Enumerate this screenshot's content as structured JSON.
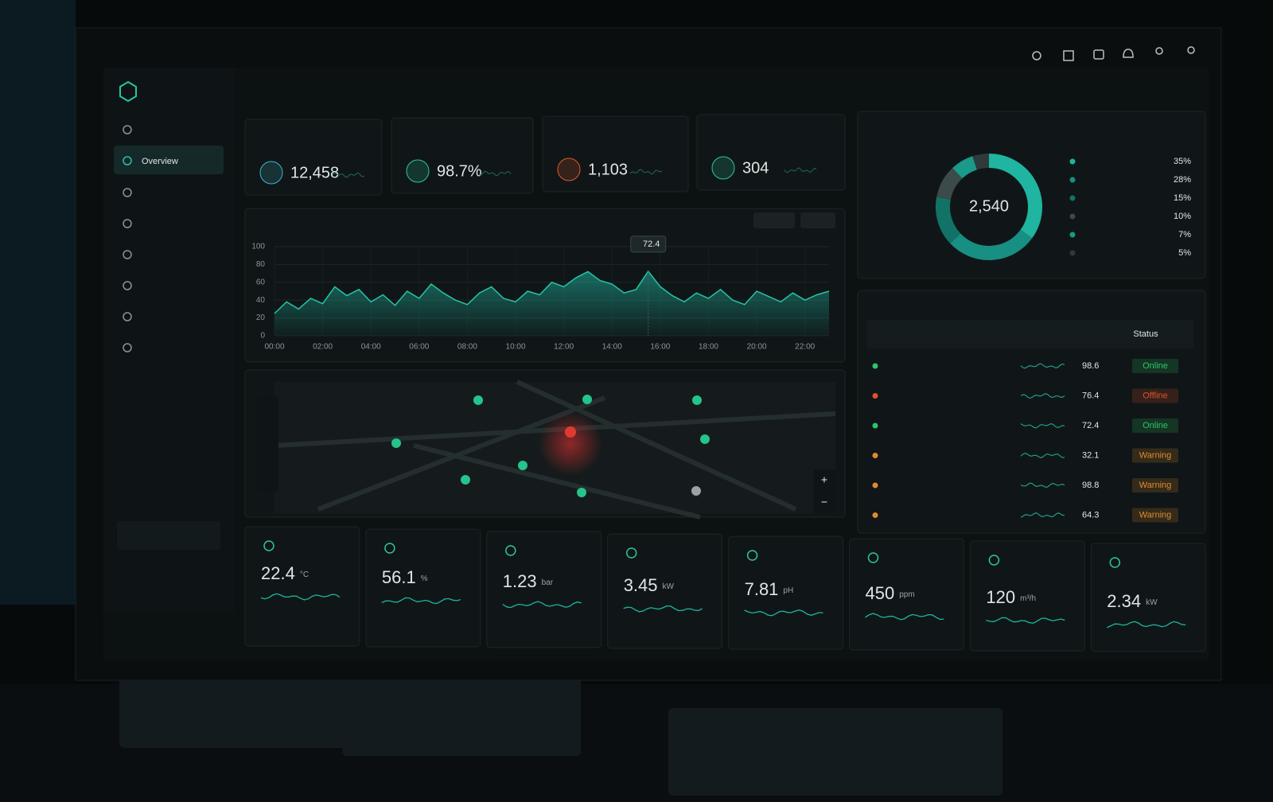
{
  "sidebar": {
    "active": "Overview"
  },
  "kpis": [
    {
      "value": "12,458",
      "color": "#3fb3c9"
    },
    {
      "value": "98.7%",
      "color": "#2ec4a0"
    },
    {
      "value": "1,103",
      "color": "#e0582f"
    },
    {
      "value": "304",
      "color": "#2ec4a0"
    }
  ],
  "trend_chart": {
    "type": "line",
    "x": [
      0,
      0.5,
      1,
      1.5,
      2,
      2.5,
      3,
      3.5,
      4,
      4.5,
      5,
      5.5,
      6,
      6.5,
      7,
      7.5,
      8,
      8.5,
      9,
      9.5,
      10,
      10.5,
      11,
      11.5,
      12,
      12.5,
      13,
      13.5,
      14,
      14.5,
      15,
      15.5,
      16,
      16.5,
      17,
      17.5,
      18,
      18.5,
      19,
      19.5,
      20,
      20.5,
      21,
      21.5,
      22,
      22.5,
      23
    ],
    "series": [
      {
        "color": "#25c4a6",
        "values": [
          25,
          38,
          30,
          42,
          36,
          55,
          45,
          52,
          38,
          46,
          34,
          50,
          42,
          58,
          48,
          40,
          35,
          48,
          55,
          42,
          38,
          50,
          46,
          60,
          55,
          65,
          72,
          62,
          58,
          48,
          52,
          72.4,
          55,
          45,
          38,
          48,
          42,
          52,
          40,
          35,
          50,
          44,
          38,
          48,
          40,
          46,
          50
        ]
      }
    ],
    "xlim": [
      0,
      23
    ],
    "ylim": [
      0,
      100
    ],
    "yticks": [
      0,
      20,
      40,
      60,
      80,
      100
    ],
    "xticks": [
      {
        "value": 0,
        "label": "00:00"
      },
      {
        "value": 2,
        "label": "02:00"
      },
      {
        "value": 4,
        "label": "04:00"
      },
      {
        "value": 6,
        "label": "06:00"
      },
      {
        "value": 8,
        "label": "08:00"
      },
      {
        "value": 10,
        "label": "10:00"
      },
      {
        "value": 12,
        "label": "12:00"
      },
      {
        "value": 14,
        "label": "14:00"
      },
      {
        "value": 16,
        "label": "16:00"
      },
      {
        "value": 18,
        "label": "18:00"
      },
      {
        "value": 20,
        "label": "20:00"
      },
      {
        "value": 22,
        "label": "22:00"
      }
    ],
    "grid": true,
    "tooltip": {
      "x": 15.5,
      "value": 72.4
    }
  },
  "donut": {
    "type": "pie",
    "center": "2,540",
    "values": [
      35,
      28,
      15,
      10,
      7,
      5
    ],
    "value_labels": [
      "35%",
      "28%",
      "15%",
      "10%",
      "7%",
      "5%"
    ],
    "colors": [
      "#1fb5a0",
      "#178f82",
      "#127267",
      "#3d4a4a",
      "#1a9a88",
      "#2f3a3a"
    ]
  },
  "table": {
    "header": "Status",
    "rows": [
      {
        "value": "98.6",
        "status": "Online",
        "color": "#2ec46a"
      },
      {
        "value": "76.4",
        "status": "Offline",
        "color": "#e0502f"
      },
      {
        "value": "72.4",
        "status": "Online",
        "color": "#2ec46a"
      },
      {
        "value": "32.1",
        "status": "Warning",
        "color": "#e08a2f"
      },
      {
        "value": "98.8",
        "status": "Warning",
        "color": "#e08a2f"
      },
      {
        "value": "64.3",
        "status": "Warning",
        "color": "#e08a2f"
      }
    ]
  },
  "sensors": [
    {
      "value": "22.4",
      "unit": "°C"
    },
    {
      "value": "56.1",
      "unit": "%"
    },
    {
      "value": "1.23",
      "unit": "bar"
    },
    {
      "value": "3.45",
      "unit": "kW"
    },
    {
      "value": "7.81",
      "unit": "pH"
    },
    {
      "value": "450",
      "unit": "ppm"
    },
    {
      "value": "120",
      "unit": "m³/h"
    },
    {
      "value": "2.34",
      "unit": "kW"
    }
  ]
}
